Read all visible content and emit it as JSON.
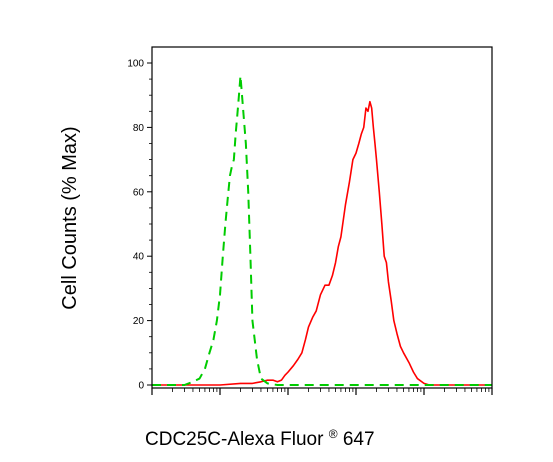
{
  "chart_data": {
    "type": "line",
    "title": "",
    "xlabel": "CDC25C-Alexa Fluor",
    "xlabel_superscript": "®",
    "xlabel_suffix": " 647",
    "ylabel": "Cell Counts (% Max)",
    "xscale": "log",
    "ylim": [
      0,
      100
    ],
    "yticks": [
      0,
      20,
      40,
      60,
      80,
      100
    ],
    "ytick_labels": [
      "0",
      "20",
      "40",
      "60",
      "80",
      "100"
    ],
    "grid": false,
    "legend": "none",
    "series": [
      {
        "color": "#ff0000",
        "style": "solid",
        "x": [
          1,
          2,
          3,
          5,
          10,
          20,
          30,
          40,
          50,
          60,
          70,
          80,
          90,
          100,
          120,
          140,
          160,
          180,
          200,
          230,
          260,
          300,
          350,
          400,
          450,
          500,
          550,
          600,
          700,
          800,
          900,
          1000,
          1100,
          1200,
          1300,
          1400,
          1500,
          1600,
          1700,
          1800,
          1900,
          2000,
          2200,
          2400,
          2600,
          2800,
          3000,
          3300,
          3600,
          4000,
          4500,
          5000,
          6000,
          7000,
          8000,
          10000,
          12000,
          15000,
          20000,
          30000,
          50000,
          100000
        ],
        "y": [
          0,
          0,
          0,
          0,
          0,
          0.5,
          0.5,
          1,
          1.5,
          1.5,
          1,
          1.5,
          3,
          4,
          6,
          8,
          10,
          14,
          18,
          21,
          23,
          28,
          31,
          31,
          34,
          38,
          43,
          46,
          56,
          63,
          70,
          72,
          75,
          78,
          80,
          86,
          85,
          88,
          86,
          80,
          75,
          70,
          60,
          50,
          40,
          38,
          32,
          26,
          20,
          16,
          12,
          10,
          7,
          4,
          2,
          0.5,
          0,
          0,
          0,
          0,
          0,
          0
        ]
      },
      {
        "color": "#00cc00",
        "style": "dashed",
        "x": [
          1,
          1.5,
          2,
          2.5,
          3,
          4,
          5,
          6,
          7,
          8,
          9,
          10,
          11,
          12,
          13,
          14,
          15,
          16,
          17,
          18,
          19,
          20,
          22,
          24,
          26,
          28,
          30,
          35,
          40,
          50,
          70,
          100,
          1000,
          100000
        ],
        "y": [
          0,
          0,
          0,
          0,
          0,
          1,
          2,
          5,
          10,
          14,
          20,
          28,
          40,
          50,
          58,
          65,
          68,
          70,
          78,
          84,
          90,
          96,
          85,
          75,
          60,
          40,
          20,
          8,
          2,
          0.5,
          0,
          0,
          0,
          0
        ]
      }
    ]
  }
}
